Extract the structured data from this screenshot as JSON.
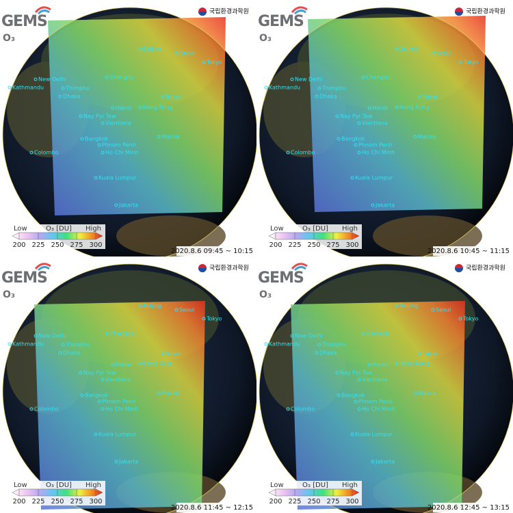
{
  "logo": "GEMS",
  "product": "O₃",
  "institute": "국립환경과학원",
  "colorbar": {
    "low": "Low",
    "unit": "O₃ [DU]",
    "high": "High",
    "ticks": [
      200,
      225,
      250,
      275,
      300
    ]
  },
  "cities": [
    "Beijing",
    "Seoul",
    "Tokyo",
    "New Delhi",
    "Kathmandu",
    "Thimphu",
    "Dhaka",
    "Chengdu",
    "Taipei",
    "Hong Kong",
    "Hanoi",
    "Nay Pyi Taw",
    "Vientiane",
    "Bangkok",
    "Phnom Penh",
    "Ho Chi Minh",
    "Manila",
    "Colombo",
    "Kuala Lumpur",
    "Jakarta"
  ],
  "panels": [
    {
      "time": "2020.8.6 09:45 ~ 10:15"
    },
    {
      "time": "2020.8.6 10:45 ~ 11:15"
    },
    {
      "time": "2020.8.6 11:45 ~ 12:15"
    },
    {
      "time": "2020.8.6 12:45 ~ 13:15"
    }
  ]
}
